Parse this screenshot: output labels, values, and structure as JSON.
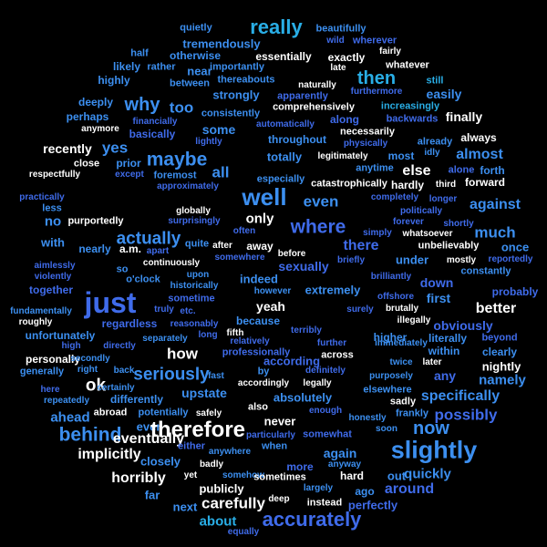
{
  "palette": {
    "background": "#000000",
    "white": "#ffffff",
    "cyan": "#29aee6",
    "sky": "#3c8ff0",
    "blue": "#3f6bea",
    "indigo": "#5b4fe0",
    "violet": "#6a45d8"
  },
  "words": [
    {
      "t": "really",
      "c": "cyan"
    },
    {
      "t": "quietly",
      "c": "sky"
    },
    {
      "t": "tremendously",
      "c": "sky"
    },
    {
      "t": "beautifully",
      "c": "sky"
    },
    {
      "t": "wild",
      "c": "blue"
    },
    {
      "t": "wherever",
      "c": "blue"
    },
    {
      "t": "half",
      "c": "sky"
    },
    {
      "t": "otherwise",
      "c": "sky"
    },
    {
      "t": "essentially",
      "c": "white"
    },
    {
      "t": "fairly",
      "c": "white"
    },
    {
      "t": "exactly",
      "c": "white"
    },
    {
      "t": "whatever",
      "c": "white"
    },
    {
      "t": "likely",
      "c": "sky"
    },
    {
      "t": "rather",
      "c": "sky"
    },
    {
      "t": "importantly",
      "c": "sky"
    },
    {
      "t": "late",
      "c": "white"
    },
    {
      "t": "highly",
      "c": "sky"
    },
    {
      "t": "near",
      "c": "sky"
    },
    {
      "t": "then",
      "c": "cyan"
    },
    {
      "t": "thereabouts",
      "c": "sky"
    },
    {
      "t": "naturally",
      "c": "white"
    },
    {
      "t": "still",
      "c": "cyan"
    },
    {
      "t": "between",
      "c": "sky"
    },
    {
      "t": "furthermore",
      "c": "blue"
    },
    {
      "t": "easily",
      "c": "sky"
    },
    {
      "t": "apparently",
      "c": "blue"
    },
    {
      "t": "deeply",
      "c": "sky"
    },
    {
      "t": "strongly",
      "c": "sky"
    },
    {
      "t": "comprehensively",
      "c": "white"
    },
    {
      "t": "increasingly",
      "c": "cyan"
    },
    {
      "t": "why",
      "c": "sky"
    },
    {
      "t": "too",
      "c": "sky"
    },
    {
      "t": "perhaps",
      "c": "sky"
    },
    {
      "t": "consistently",
      "c": "sky"
    },
    {
      "t": "along",
      "c": "blue"
    },
    {
      "t": "backwards",
      "c": "blue"
    },
    {
      "t": "finally",
      "c": "white"
    },
    {
      "t": "financially",
      "c": "blue"
    },
    {
      "t": "automatically",
      "c": "blue"
    },
    {
      "t": "anymore",
      "c": "white"
    },
    {
      "t": "some",
      "c": "sky"
    },
    {
      "t": "necessarily",
      "c": "white"
    },
    {
      "t": "basically",
      "c": "blue"
    },
    {
      "t": "throughout",
      "c": "sky"
    },
    {
      "t": "always",
      "c": "white"
    },
    {
      "t": "lightly",
      "c": "blue"
    },
    {
      "t": "physically",
      "c": "blue"
    },
    {
      "t": "already",
      "c": "sky"
    },
    {
      "t": "recently",
      "c": "white"
    },
    {
      "t": "yes",
      "c": "sky"
    },
    {
      "t": "maybe",
      "c": "sky"
    },
    {
      "t": "totally",
      "c": "sky"
    },
    {
      "t": "legitimately",
      "c": "white"
    },
    {
      "t": "most",
      "c": "sky"
    },
    {
      "t": "idly",
      "c": "sky"
    },
    {
      "t": "almost",
      "c": "sky"
    },
    {
      "t": "close",
      "c": "white"
    },
    {
      "t": "prior",
      "c": "sky"
    },
    {
      "t": "anytime",
      "c": "sky"
    },
    {
      "t": "alone",
      "c": "blue"
    },
    {
      "t": "forth",
      "c": "sky"
    },
    {
      "t": "respectfully",
      "c": "white"
    },
    {
      "t": "except",
      "c": "blue"
    },
    {
      "t": "foremost",
      "c": "sky"
    },
    {
      "t": "all",
      "c": "sky"
    },
    {
      "t": "else",
      "c": "white"
    },
    {
      "t": "especially",
      "c": "sky"
    },
    {
      "t": "approximately",
      "c": "blue"
    },
    {
      "t": "catastrophically",
      "c": "white"
    },
    {
      "t": "hardly",
      "c": "white"
    },
    {
      "t": "third",
      "c": "white"
    },
    {
      "t": "forward",
      "c": "white"
    },
    {
      "t": "well",
      "c": "sky"
    },
    {
      "t": "even",
      "c": "sky"
    },
    {
      "t": "practically",
      "c": "blue"
    },
    {
      "t": "completely",
      "c": "blue"
    },
    {
      "t": "longer",
      "c": "blue"
    },
    {
      "t": "less",
      "c": "sky"
    },
    {
      "t": "globally",
      "c": "white"
    },
    {
      "t": "politically",
      "c": "blue"
    },
    {
      "t": "against",
      "c": "sky"
    },
    {
      "t": "only",
      "c": "white"
    },
    {
      "t": "no",
      "c": "sky"
    },
    {
      "t": "purportedly",
      "c": "white"
    },
    {
      "t": "surprisingly",
      "c": "blue"
    },
    {
      "t": "where",
      "c": "blue"
    },
    {
      "t": "forever",
      "c": "blue"
    },
    {
      "t": "shortly",
      "c": "blue"
    },
    {
      "t": "actually",
      "c": "sky"
    },
    {
      "t": "often",
      "c": "blue"
    },
    {
      "t": "simply",
      "c": "blue"
    },
    {
      "t": "whatsoever",
      "c": "white"
    },
    {
      "t": "much",
      "c": "sky"
    },
    {
      "t": "with",
      "c": "sky"
    },
    {
      "t": "nearly",
      "c": "sky"
    },
    {
      "t": "a.m.",
      "c": "white"
    },
    {
      "t": "apart",
      "c": "blue"
    },
    {
      "t": "quite",
      "c": "sky"
    },
    {
      "t": "after",
      "c": "white"
    },
    {
      "t": "away",
      "c": "white"
    },
    {
      "t": "there",
      "c": "blue"
    },
    {
      "t": "unbelievably",
      "c": "white"
    },
    {
      "t": "once",
      "c": "sky"
    },
    {
      "t": "continuously",
      "c": "white"
    },
    {
      "t": "somewhere",
      "c": "blue"
    },
    {
      "t": "before",
      "c": "white"
    },
    {
      "t": "briefly",
      "c": "blue"
    },
    {
      "t": "mostly",
      "c": "white"
    },
    {
      "t": "reportedly",
      "c": "blue"
    },
    {
      "t": "aimlessly",
      "c": "blue"
    },
    {
      "t": "so",
      "c": "sky"
    },
    {
      "t": "sexually",
      "c": "blue"
    },
    {
      "t": "under",
      "c": "sky"
    },
    {
      "t": "constantly",
      "c": "sky"
    },
    {
      "t": "violently",
      "c": "blue"
    },
    {
      "t": "o'clock",
      "c": "sky"
    },
    {
      "t": "upon",
      "c": "sky"
    },
    {
      "t": "indeed",
      "c": "sky"
    },
    {
      "t": "brilliantly",
      "c": "blue"
    },
    {
      "t": "down",
      "c": "blue"
    },
    {
      "t": "together",
      "c": "blue"
    },
    {
      "t": "historically",
      "c": "sky"
    },
    {
      "t": "extremely",
      "c": "sky"
    },
    {
      "t": "probably",
      "c": "blue"
    },
    {
      "t": "just",
      "c": "blue"
    },
    {
      "t": "sometime",
      "c": "blue"
    },
    {
      "t": "however",
      "c": "sky"
    },
    {
      "t": "offshore",
      "c": "blue"
    },
    {
      "t": "first",
      "c": "sky"
    },
    {
      "t": "fundamentally",
      "c": "sky"
    },
    {
      "t": "truly",
      "c": "blue"
    },
    {
      "t": "etc.",
      "c": "blue"
    },
    {
      "t": "yeah",
      "c": "white"
    },
    {
      "t": "surely",
      "c": "blue"
    },
    {
      "t": "brutally",
      "c": "white"
    },
    {
      "t": "better",
      "c": "white"
    },
    {
      "t": "roughly",
      "c": "white"
    },
    {
      "t": "regardless",
      "c": "blue"
    },
    {
      "t": "reasonably",
      "c": "blue"
    },
    {
      "t": "because",
      "c": "sky"
    },
    {
      "t": "illegally",
      "c": "white"
    },
    {
      "t": "obviously",
      "c": "blue"
    },
    {
      "t": "unfortunately",
      "c": "sky"
    },
    {
      "t": "separately",
      "c": "sky"
    },
    {
      "t": "long",
      "c": "blue"
    },
    {
      "t": "fifth",
      "c": "white"
    },
    {
      "t": "terribly",
      "c": "blue"
    },
    {
      "t": "higher",
      "c": "sky"
    },
    {
      "t": "literally",
      "c": "sky"
    },
    {
      "t": "beyond",
      "c": "blue"
    },
    {
      "t": "high",
      "c": "blue"
    },
    {
      "t": "directly",
      "c": "blue"
    },
    {
      "t": "how",
      "c": "white"
    },
    {
      "t": "relatively",
      "c": "blue"
    },
    {
      "t": "further",
      "c": "blue"
    },
    {
      "t": "immediately",
      "c": "sky"
    },
    {
      "t": "within",
      "c": "sky"
    },
    {
      "t": "clearly",
      "c": "sky"
    },
    {
      "t": "personally",
      "c": "white"
    },
    {
      "t": "secondly",
      "c": "sky"
    },
    {
      "t": "professionally",
      "c": "blue"
    },
    {
      "t": "across",
      "c": "white"
    },
    {
      "t": "later",
      "c": "white"
    },
    {
      "t": "generally",
      "c": "sky"
    },
    {
      "t": "right",
      "c": "sky"
    },
    {
      "t": "back",
      "c": "sky"
    },
    {
      "t": "seriously",
      "c": "sky"
    },
    {
      "t": "by",
      "c": "sky"
    },
    {
      "t": "according",
      "c": "blue"
    },
    {
      "t": "definitely",
      "c": "blue"
    },
    {
      "t": "twice",
      "c": "sky"
    },
    {
      "t": "nightly",
      "c": "white"
    },
    {
      "t": "fast",
      "c": "sky"
    },
    {
      "t": "accordingly",
      "c": "white"
    },
    {
      "t": "legally",
      "c": "white"
    },
    {
      "t": "purposely",
      "c": "sky"
    },
    {
      "t": "any",
      "c": "blue"
    },
    {
      "t": "namely",
      "c": "sky"
    },
    {
      "t": "here",
      "c": "blue"
    },
    {
      "t": "ok",
      "c": "white"
    },
    {
      "t": "certainly",
      "c": "sky"
    },
    {
      "t": "upstate",
      "c": "sky"
    },
    {
      "t": "elsewhere",
      "c": "sky"
    },
    {
      "t": "repeatedly",
      "c": "sky"
    },
    {
      "t": "differently",
      "c": "sky"
    },
    {
      "t": "absolutely",
      "c": "sky"
    },
    {
      "t": "specifically",
      "c": "sky"
    },
    {
      "t": "sadly",
      "c": "white"
    },
    {
      "t": "also",
      "c": "white"
    },
    {
      "t": "ahead",
      "c": "sky"
    },
    {
      "t": "abroad",
      "c": "white"
    },
    {
      "t": "potentially",
      "c": "sky"
    },
    {
      "t": "safely",
      "c": "white"
    },
    {
      "t": "enough",
      "c": "blue"
    },
    {
      "t": "frankly",
      "c": "sky"
    },
    {
      "t": "possibly",
      "c": "blue"
    },
    {
      "t": "honestly",
      "c": "sky"
    },
    {
      "t": "never",
      "c": "white"
    },
    {
      "t": "now",
      "c": "sky"
    },
    {
      "t": "behind",
      "c": "sky"
    },
    {
      "t": "ever",
      "c": "sky"
    },
    {
      "t": "therefore",
      "c": "white"
    },
    {
      "t": "particularly",
      "c": "blue"
    },
    {
      "t": "somewhat",
      "c": "blue"
    },
    {
      "t": "soon",
      "c": "sky"
    },
    {
      "t": "eventually",
      "c": "white"
    },
    {
      "t": "when",
      "c": "sky"
    },
    {
      "t": "slightly",
      "c": "sky"
    },
    {
      "t": "either",
      "c": "blue"
    },
    {
      "t": "anywhere",
      "c": "sky"
    },
    {
      "t": "again",
      "c": "sky"
    },
    {
      "t": "implicitly",
      "c": "white"
    },
    {
      "t": "closely",
      "c": "sky"
    },
    {
      "t": "badly",
      "c": "white"
    },
    {
      "t": "more",
      "c": "blue"
    },
    {
      "t": "anyway",
      "c": "sky"
    },
    {
      "t": "hard",
      "c": "white"
    },
    {
      "t": "out",
      "c": "sky"
    },
    {
      "t": "quickly",
      "c": "sky"
    },
    {
      "t": "horribly",
      "c": "white"
    },
    {
      "t": "yet",
      "c": "white"
    },
    {
      "t": "somehow",
      "c": "sky"
    },
    {
      "t": "sometimes",
      "c": "white"
    },
    {
      "t": "publicly",
      "c": "white"
    },
    {
      "t": "largely",
      "c": "sky"
    },
    {
      "t": "ago",
      "c": "sky"
    },
    {
      "t": "around",
      "c": "blue"
    },
    {
      "t": "far",
      "c": "sky"
    },
    {
      "t": "carefully",
      "c": "white"
    },
    {
      "t": "deep",
      "c": "white"
    },
    {
      "t": "instead",
      "c": "white"
    },
    {
      "t": "perfectly",
      "c": "blue"
    },
    {
      "t": "next",
      "c": "sky"
    },
    {
      "t": "about",
      "c": "cyan"
    },
    {
      "t": "accurately",
      "c": "blue"
    },
    {
      "t": "equally",
      "c": "blue"
    }
  ]
}
